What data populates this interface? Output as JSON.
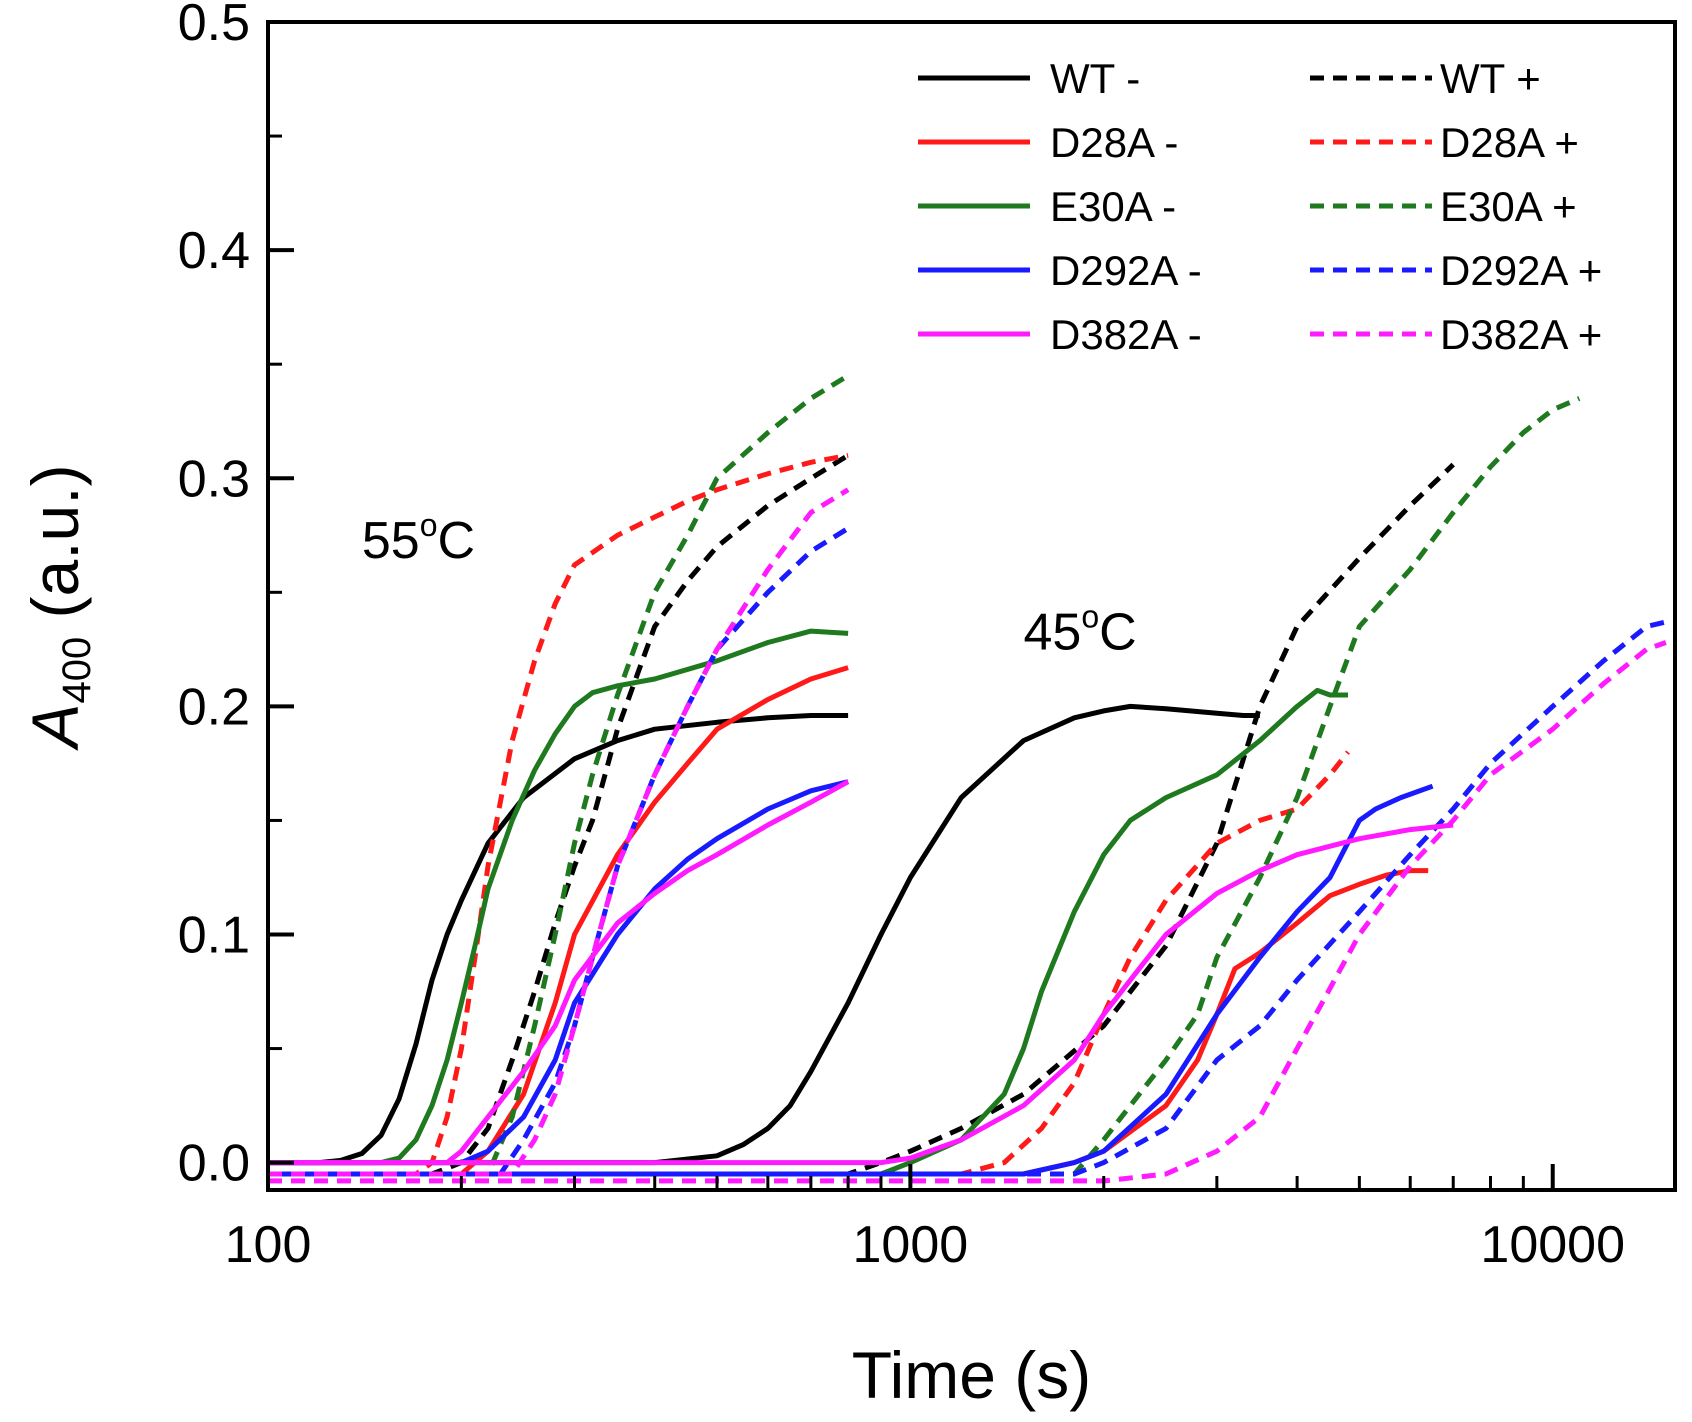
{
  "chart_data": {
    "type": "line",
    "title": "",
    "xlabel": "Time (s)",
    "ylabel_main": "A",
    "ylabel_sub": "400",
    "ylabel_suffix": " (a.u.)",
    "xscale": "log",
    "xlim": [
      100,
      15500
    ],
    "ylim": [
      -0.012,
      0.5
    ],
    "xticks": [
      {
        "value": 100,
        "label": "100"
      },
      {
        "value": 1000,
        "label": "1000"
      },
      {
        "value": 10000,
        "label": "10000"
      }
    ],
    "yticks": [
      {
        "value": 0.0,
        "label": "0.0"
      },
      {
        "value": 0.1,
        "label": "0.1"
      },
      {
        "value": 0.2,
        "label": "0.2"
      },
      {
        "value": 0.3,
        "label": "0.3"
      },
      {
        "value": 0.4,
        "label": "0.4"
      },
      {
        "value": 0.5,
        "label": "0.5"
      }
    ],
    "legend_position": "top-right",
    "legend_columns": 2,
    "annotations": [
      {
        "base": "55",
        "sup": "o",
        "tail": "C",
        "x": 140,
        "y": 0.265
      },
      {
        "base": "45",
        "sup": "o",
        "tail": "C",
        "x": 1500,
        "y": 0.225
      }
    ],
    "series": [
      {
        "name": "WT -",
        "color": "#000000",
        "dashed": false,
        "x": [
          100,
          120,
          130,
          140,
          150,
          160,
          170,
          180,
          190,
          200,
          220,
          250,
          300,
          350,
          400,
          500,
          600,
          700,
          800
        ],
        "y": [
          0,
          0,
          0.001,
          0.004,
          0.012,
          0.028,
          0.052,
          0.08,
          0.1,
          0.115,
          0.14,
          0.16,
          0.177,
          0.185,
          0.19,
          0.193,
          0.195,
          0.196,
          0.196
        ]
      },
      {
        "name": "WT -",
        "color": "#000000",
        "dashed": false,
        "x": [
          100,
          300,
          400,
          500,
          550,
          600,
          650,
          700,
          800,
          900,
          1000,
          1200,
          1500,
          1800,
          2000,
          2200,
          2500,
          3000,
          3300,
          3500
        ],
        "y": [
          0,
          0,
          0,
          0.003,
          0.008,
          0.015,
          0.025,
          0.04,
          0.07,
          0.1,
          0.125,
          0.16,
          0.185,
          0.195,
          0.198,
          0.2,
          0.199,
          0.197,
          0.196,
          0.196
        ]
      },
      {
        "name": "WT +",
        "color": "#000000",
        "dashed": true,
        "x": [
          100,
          180,
          200,
          220,
          240,
          260,
          280,
          300,
          320,
          350,
          400,
          450,
          500,
          600,
          700,
          800
        ],
        "y": [
          -0.005,
          -0.005,
          0,
          0.015,
          0.045,
          0.075,
          0.105,
          0.13,
          0.15,
          0.19,
          0.235,
          0.255,
          0.27,
          0.288,
          0.3,
          0.31
        ]
      },
      {
        "name": "WT +",
        "color": "#000000",
        "dashed": true,
        "x": [
          100,
          800,
          900,
          1000,
          1200,
          1500,
          2000,
          2500,
          3000,
          3500,
          4000,
          5000,
          6000,
          7000
        ],
        "y": [
          -0.005,
          -0.005,
          0,
          0.005,
          0.015,
          0.03,
          0.06,
          0.095,
          0.14,
          0.2,
          0.235,
          0.265,
          0.288,
          0.306
        ]
      },
      {
        "name": "D28A -",
        "color": "#ff1a1a",
        "dashed": false,
        "x": [
          100,
          200,
          220,
          250,
          280,
          300,
          350,
          400,
          450,
          500,
          600,
          700,
          800
        ],
        "y": [
          -0.005,
          -0.005,
          0.005,
          0.03,
          0.07,
          0.1,
          0.135,
          0.158,
          0.175,
          0.19,
          0.203,
          0.212,
          0.217
        ]
      },
      {
        "name": "D28A -",
        "color": "#ff1a1a",
        "dashed": false,
        "x": [
          100,
          1500,
          1800,
          2000,
          2500,
          2800,
          3000,
          3200,
          3500,
          4000,
          4500,
          5000,
          5500,
          6000,
          6400
        ],
        "y": [
          -0.005,
          -0.005,
          0,
          0.005,
          0.025,
          0.045,
          0.065,
          0.085,
          0.092,
          0.105,
          0.117,
          0.122,
          0.126,
          0.128,
          0.128
        ]
      },
      {
        "name": "D28A +",
        "color": "#ff1a1a",
        "dashed": true,
        "x": [
          100,
          170,
          180,
          190,
          200,
          210,
          220,
          240,
          260,
          280,
          300,
          350,
          400,
          450,
          500,
          600,
          700,
          800
        ],
        "y": [
          -0.005,
          -0.005,
          0,
          0.02,
          0.05,
          0.09,
          0.13,
          0.185,
          0.22,
          0.245,
          0.262,
          0.275,
          0.283,
          0.29,
          0.295,
          0.302,
          0.307,
          0.31
        ]
      },
      {
        "name": "D28A +",
        "color": "#ff1a1a",
        "dashed": true,
        "x": [
          100,
          1200,
          1400,
          1600,
          1800,
          2000,
          2200,
          2500,
          3000,
          3500,
          4000,
          4500,
          4800
        ],
        "y": [
          -0.005,
          -0.005,
          0,
          0.015,
          0.035,
          0.065,
          0.09,
          0.115,
          0.14,
          0.15,
          0.155,
          0.17,
          0.18
        ]
      },
      {
        "name": "E30A -",
        "color": "#1f7a1f",
        "dashed": false,
        "x": [
          100,
          150,
          160,
          170,
          180,
          190,
          200,
          210,
          220,
          240,
          260,
          280,
          300,
          320,
          350,
          400,
          500,
          600,
          700,
          800
        ],
        "y": [
          0,
          0,
          0.002,
          0.01,
          0.025,
          0.045,
          0.07,
          0.095,
          0.12,
          0.15,
          0.172,
          0.188,
          0.2,
          0.206,
          0.209,
          0.212,
          0.22,
          0.228,
          0.233,
          0.232
        ]
      },
      {
        "name": "E30A -",
        "color": "#1f7a1f",
        "dashed": false,
        "x": [
          100,
          900,
          1000,
          1200,
          1400,
          1500,
          1600,
          1800,
          2000,
          2200,
          2500,
          3000,
          3500,
          4000,
          4300,
          4500,
          4800
        ],
        "y": [
          -0.005,
          -0.005,
          0,
          0.01,
          0.03,
          0.05,
          0.075,
          0.11,
          0.135,
          0.15,
          0.16,
          0.17,
          0.185,
          0.2,
          0.207,
          0.205,
          0.205
        ]
      },
      {
        "name": "E30A +",
        "color": "#1f7a1f",
        "dashed": true,
        "x": [
          100,
          220,
          240,
          260,
          280,
          300,
          320,
          350,
          400,
          450,
          500,
          600,
          700,
          800
        ],
        "y": [
          -0.005,
          -0.005,
          0.02,
          0.06,
          0.1,
          0.14,
          0.17,
          0.205,
          0.25,
          0.275,
          0.3,
          0.32,
          0.335,
          0.345
        ]
      },
      {
        "name": "E30A +",
        "color": "#1f7a1f",
        "dashed": true,
        "x": [
          100,
          1800,
          2000,
          2200,
          2500,
          2800,
          3000,
          3500,
          4000,
          4500,
          5000,
          6000,
          7000,
          8000,
          9000,
          10000,
          11000
        ],
        "y": [
          -0.005,
          -0.005,
          0.01,
          0.025,
          0.045,
          0.065,
          0.09,
          0.125,
          0.16,
          0.2,
          0.235,
          0.26,
          0.285,
          0.305,
          0.32,
          0.33,
          0.335
        ]
      },
      {
        "name": "D292A -",
        "color": "#1a1aff",
        "dashed": false,
        "x": [
          100,
          200,
          220,
          250,
          280,
          300,
          350,
          400,
          450,
          500,
          600,
          700,
          800
        ],
        "y": [
          0,
          0,
          0.005,
          0.02,
          0.045,
          0.07,
          0.1,
          0.12,
          0.133,
          0.142,
          0.155,
          0.163,
          0.167
        ]
      },
      {
        "name": "D292A -",
        "color": "#1a1aff",
        "dashed": false,
        "x": [
          100,
          1500,
          1800,
          2000,
          2500,
          3000,
          3500,
          4000,
          4500,
          5000,
          5300,
          5800,
          6500
        ],
        "y": [
          -0.005,
          -0.005,
          0,
          0.005,
          0.03,
          0.065,
          0.09,
          0.11,
          0.125,
          0.15,
          0.155,
          0.16,
          0.165
        ]
      },
      {
        "name": "D292A +",
        "color": "#1a1aff",
        "dashed": true,
        "x": [
          100,
          230,
          250,
          280,
          300,
          320,
          350,
          400,
          450,
          500,
          600,
          700,
          800
        ],
        "y": [
          -0.005,
          -0.005,
          0.01,
          0.035,
          0.06,
          0.09,
          0.13,
          0.17,
          0.2,
          0.225,
          0.25,
          0.268,
          0.278
        ]
      },
      {
        "name": "D292A +",
        "color": "#1a1aff",
        "dashed": true,
        "x": [
          100,
          1800,
          2000,
          2500,
          3000,
          3500,
          4000,
          5000,
          6000,
          7000,
          8000,
          10000,
          12000,
          14000,
          15000
        ],
        "y": [
          -0.005,
          -0.005,
          0,
          0.015,
          0.045,
          0.06,
          0.08,
          0.11,
          0.135,
          0.155,
          0.175,
          0.2,
          0.22,
          0.235,
          0.237
        ]
      },
      {
        "name": "D382A -",
        "color": "#ff1aff",
        "dashed": false,
        "x": [
          100,
          190,
          200,
          220,
          250,
          280,
          300,
          350,
          400,
          450,
          500,
          600,
          700,
          800
        ],
        "y": [
          0,
          0,
          0.005,
          0.02,
          0.04,
          0.06,
          0.08,
          0.105,
          0.118,
          0.128,
          0.135,
          0.148,
          0.158,
          0.167
        ]
      },
      {
        "name": "D382A -",
        "color": "#ff1aff",
        "dashed": false,
        "x": [
          100,
          900,
          1000,
          1200,
          1500,
          1800,
          2000,
          2200,
          2500,
          3000,
          3500,
          4000,
          5000,
          6000,
          7000
        ],
        "y": [
          0,
          0,
          0.002,
          0.01,
          0.025,
          0.045,
          0.065,
          0.08,
          0.1,
          0.118,
          0.128,
          0.135,
          0.142,
          0.146,
          0.148
        ]
      },
      {
        "name": "D382A +",
        "color": "#ff1aff",
        "dashed": true,
        "x": [
          100,
          240,
          260,
          280,
          300,
          320,
          350,
          400,
          450,
          500,
          600,
          700,
          800
        ],
        "y": [
          -0.005,
          -0.005,
          0.01,
          0.03,
          0.06,
          0.09,
          0.13,
          0.17,
          0.2,
          0.225,
          0.26,
          0.285,
          0.295
        ]
      },
      {
        "name": "D382A +",
        "color": "#ff1aff",
        "dashed": true,
        "x": [
          100,
          2000,
          2500,
          3000,
          3500,
          4000,
          5000,
          6000,
          7000,
          8000,
          10000,
          12000,
          14000,
          15000
        ],
        "y": [
          -0.008,
          -0.008,
          -0.005,
          0.005,
          0.02,
          0.05,
          0.1,
          0.13,
          0.15,
          0.17,
          0.19,
          0.21,
          0.225,
          0.228
        ]
      }
    ],
    "legend": [
      {
        "label": "WT -",
        "color": "#000000",
        "dashed": false
      },
      {
        "label": "WT +",
        "color": "#000000",
        "dashed": true
      },
      {
        "label": "D28A -",
        "color": "#ff1a1a",
        "dashed": false
      },
      {
        "label": "D28A +",
        "color": "#ff1a1a",
        "dashed": true
      },
      {
        "label": "E30A -",
        "color": "#1f7a1f",
        "dashed": false
      },
      {
        "label": "E30A +",
        "color": "#1f7a1f",
        "dashed": true
      },
      {
        "label": "D292A -",
        "color": "#1a1aff",
        "dashed": false
      },
      {
        "label": "D292A +",
        "color": "#1a1aff",
        "dashed": true
      },
      {
        "label": "D382A -",
        "color": "#ff1aff",
        "dashed": false
      },
      {
        "label": "D382A +",
        "color": "#ff1aff",
        "dashed": true
      }
    ]
  }
}
